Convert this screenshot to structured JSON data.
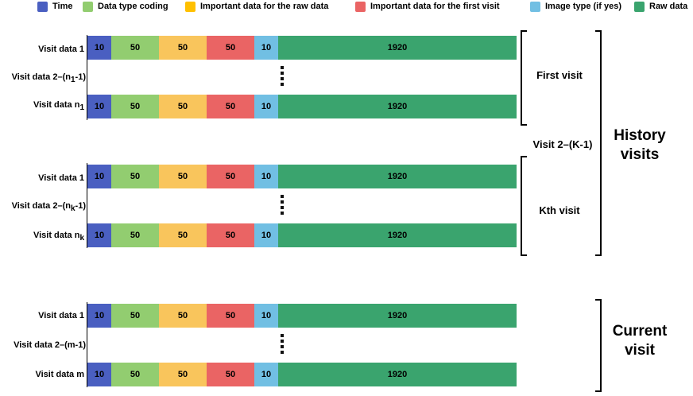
{
  "legend": [
    {
      "label": "Time",
      "color": "#4a5fc1"
    },
    {
      "label": "Data type coding",
      "color": "#92cd70"
    },
    {
      "label": "Important data for the raw data",
      "color": "#ffc000"
    },
    {
      "label": "Important data for the first visit",
      "color": "#ea6464"
    },
    {
      "label": "Image type (if yes)",
      "color": "#71bfe3"
    },
    {
      "label": "Raw data",
      "color": "#3aa46e"
    }
  ],
  "segment_values": [
    "10",
    "50",
    "50",
    "50",
    "10",
    "1920"
  ],
  "segment_colors": [
    "#4a5fc1",
    "#92cd70",
    "#f9c55c",
    "#ea6464",
    "#71bfe3",
    "#3aa46e"
  ],
  "rows": {
    "first_row1": "Visit data 1",
    "first_row2_prefix": "Visit data 2–(n",
    "first_row2_sub": "1",
    "first_row2_suffix": "-1)",
    "first_row3_prefix": "Visit data n",
    "first_row3_sub": "1",
    "kth_row1": "Visit data 1",
    "kth_row2_prefix": "Visit data 2–(n",
    "kth_row2_sub": "k",
    "kth_row2_suffix": "-1)",
    "kth_row3_prefix": "Visit data n",
    "kth_row3_sub": "k",
    "cur_row1": "Visit data 1",
    "cur_row2": "Visit data 2–(m-1)",
    "cur_row3": "Visit data m"
  },
  "side_labels": {
    "first_visit": "First visit",
    "middle_visits": "Visit 2–(K-1)",
    "kth_visit": "Kth visit",
    "history_line1": "History",
    "history_line2": "visits",
    "current_line1": "Current",
    "current_line2": "visit"
  }
}
